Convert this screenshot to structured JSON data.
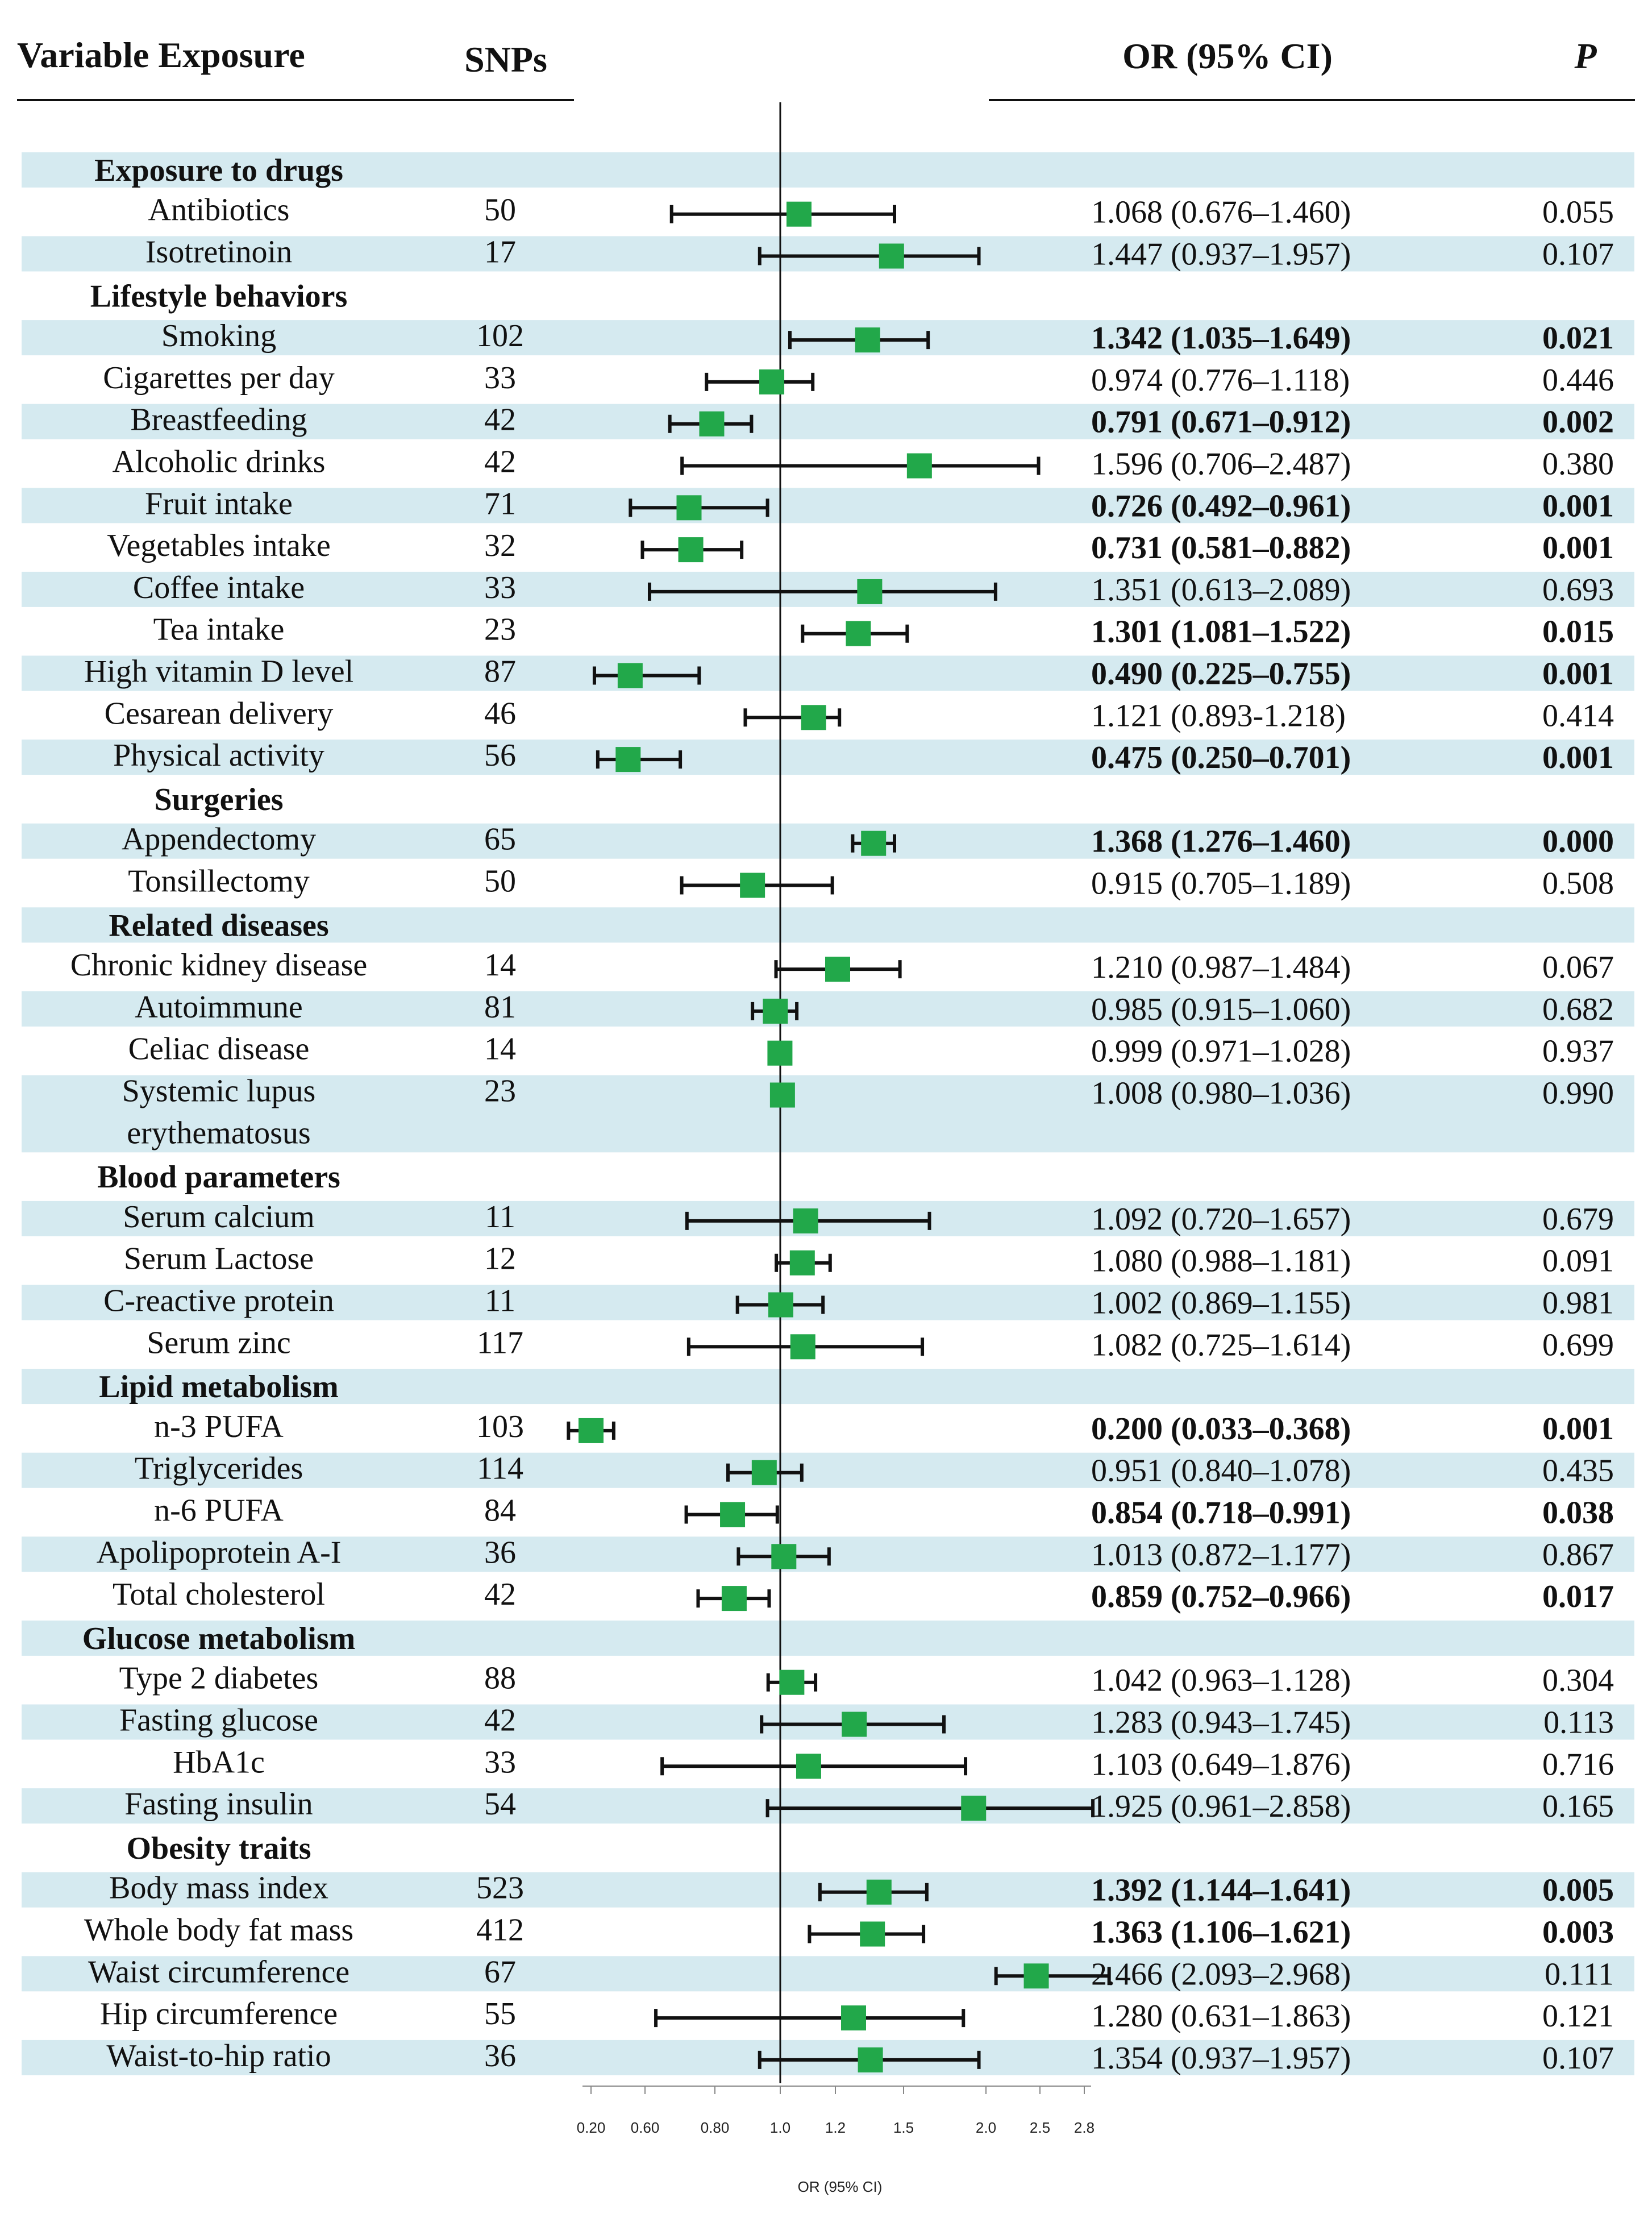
{
  "header": {
    "variable": "Variable Exposure",
    "snps": "SNPs",
    "or": "OR (95% CI)",
    "p": "P"
  },
  "colors": {
    "band": "#d5eaf0",
    "marker": "#22a84a",
    "line": "#111111"
  },
  "chart_data": {
    "type": "forest",
    "title": "",
    "xlabel": "OR (95% CI)",
    "xticks": [
      0.2,
      0.6,
      0.8,
      1.0,
      1.2,
      1.5,
      2.0,
      2.5,
      2.8
    ],
    "xtick_labels": [
      "0.20",
      "0.60",
      "0.80",
      "1.0",
      "1.2",
      "1.5",
      "2.0",
      "2.5",
      "2.8"
    ],
    "reference_line": 1.0,
    "rows": [
      {
        "kind": "group",
        "label": "Exposure to drugs",
        "band": true
      },
      {
        "kind": "item",
        "label": "Antibiotics",
        "snps": "50",
        "or": 1.068,
        "lo": 0.676,
        "hi": 1.46,
        "or_text": "1.068 (0.676–1.460)",
        "p": "0.055",
        "bold": false,
        "band": false
      },
      {
        "kind": "item",
        "label": "Isotretinoin",
        "snps": "17",
        "or": 1.447,
        "lo": 0.937,
        "hi": 1.957,
        "or_text": "1.447 (0.937–1.957)",
        "p": "0.107",
        "bold": false,
        "band": true
      },
      {
        "kind": "group",
        "label": "Lifestyle behaviors",
        "band": false
      },
      {
        "kind": "item",
        "label": "Smoking",
        "snps": "102",
        "or": 1.342,
        "lo": 1.035,
        "hi": 1.649,
        "or_text": "1.342 (1.035–1.649)",
        "p": "0.021",
        "bold": true,
        "band": true
      },
      {
        "kind": "item",
        "label": "Cigarettes per day",
        "snps": "33",
        "or": 0.974,
        "lo": 0.776,
        "hi": 1.118,
        "or_text": "0.974 (0.776–1.118)",
        "p": "0.446",
        "bold": false,
        "band": false
      },
      {
        "kind": "item",
        "label": "Breastfeeding",
        "snps": "42",
        "or": 0.791,
        "lo": 0.671,
        "hi": 0.912,
        "or_text": "0.791 (0.671–0.912)",
        "p": "0.002",
        "bold": true,
        "band": true
      },
      {
        "kind": "item",
        "label": "Alcoholic drinks",
        "snps": "42",
        "or": 1.596,
        "lo": 0.706,
        "hi": 2.487,
        "or_text": "1.596 (0.706–2.487)",
        "p": "0.380",
        "bold": false,
        "band": false
      },
      {
        "kind": "item",
        "label": "Fruit intake",
        "snps": "71",
        "or": 0.726,
        "lo": 0.492,
        "hi": 0.961,
        "or_text": "0.726 (0.492–0.961)",
        "p": "0.001",
        "bold": true,
        "band": true
      },
      {
        "kind": "item",
        "label": "Vegetables intake",
        "snps": "32",
        "or": 0.731,
        "lo": 0.581,
        "hi": 0.882,
        "or_text": "0.731 (0.581–0.882)",
        "p": "0.001",
        "bold": true,
        "band": false
      },
      {
        "kind": "item",
        "label": "Coffee intake",
        "snps": "33",
        "or": 1.351,
        "lo": 0.613,
        "hi": 2.089,
        "or_text": "1.351 (0.613–2.089)",
        "p": "0.693",
        "bold": false,
        "band": true
      },
      {
        "kind": "item",
        "label": "Tea intake",
        "snps": "23",
        "or": 1.301,
        "lo": 1.081,
        "hi": 1.522,
        "or_text": "1.301 (1.081–1.522)",
        "p": "0.015",
        "bold": true,
        "band": false
      },
      {
        "kind": "item",
        "label": "High vitamin D level",
        "snps": "87",
        "or": 0.49,
        "lo": 0.225,
        "hi": 0.755,
        "or_text": "0.490 (0.225–0.755)",
        "p": "0.001",
        "bold": true,
        "band": true
      },
      {
        "kind": "item",
        "label": "Cesarean delivery",
        "snps": "46",
        "or": 1.121,
        "lo": 0.893,
        "hi": 1.218,
        "or_text": "1.121 (0.893-1.218)",
        "p": "0.414",
        "bold": false,
        "band": false
      },
      {
        "kind": "item",
        "label": "Physical activity",
        "snps": "56",
        "or": 0.475,
        "lo": 0.25,
        "hi": 0.701,
        "or_text": "0.475 (0.250–0.701)",
        "p": "0.001",
        "bold": true,
        "band": true
      },
      {
        "kind": "group",
        "label": "Surgeries",
        "band": false
      },
      {
        "kind": "item",
        "label": "Appendectomy",
        "snps": "65",
        "or": 1.368,
        "lo": 1.276,
        "hi": 1.46,
        "or_text": "1.368 (1.276–1.460)",
        "p": "0.000",
        "bold": true,
        "band": true
      },
      {
        "kind": "item",
        "label": "Tonsillectomy",
        "snps": "50",
        "or": 0.915,
        "lo": 0.705,
        "hi": 1.189,
        "or_text": "0.915 (0.705–1.189)",
        "p": "0.508",
        "bold": false,
        "band": false
      },
      {
        "kind": "group",
        "label": "Related diseases",
        "band": true
      },
      {
        "kind": "item",
        "label": "Chronic kidney disease",
        "snps": "14",
        "or": 1.21,
        "lo": 0.987,
        "hi": 1.484,
        "or_text": "1.210 (0.987–1.484)",
        "p": "0.067",
        "bold": false,
        "band": false
      },
      {
        "kind": "item",
        "label": "Autoimmune",
        "snps": "81",
        "or": 0.985,
        "lo": 0.915,
        "hi": 1.06,
        "or_text": "0.985 (0.915–1.060)",
        "p": "0.682",
        "bold": false,
        "band": true
      },
      {
        "kind": "item",
        "label": "Celiac disease",
        "snps": "14",
        "or": 0.999,
        "lo": 0.971,
        "hi": 1.028,
        "or_text": "0.999 (0.971–1.028)",
        "p": "0.937",
        "bold": false,
        "band": false
      },
      {
        "kind": "item",
        "label": "Systemic lupus",
        "label2": "erythematosus",
        "snps": "23",
        "or": 1.008,
        "lo": 0.98,
        "hi": 1.036,
        "or_text": "1.008 (0.980–1.036)",
        "p": "0.990",
        "bold": false,
        "band": true
      },
      {
        "kind": "group",
        "label": "Blood parameters",
        "band": false
      },
      {
        "kind": "item",
        "label": "Serum calcium",
        "snps": "11",
        "or": 1.092,
        "lo": 0.72,
        "hi": 1.657,
        "or_text": "1.092 (0.720–1.657)",
        "p": "0.679",
        "bold": false,
        "band": true
      },
      {
        "kind": "item",
        "label": "Serum Lactose",
        "snps": "12",
        "or": 1.08,
        "lo": 0.988,
        "hi": 1.181,
        "or_text": "1.080 (0.988–1.181)",
        "p": "0.091",
        "bold": false,
        "band": false
      },
      {
        "kind": "item",
        "label": "C-reactive protein",
        "snps": "11",
        "or": 1.002,
        "lo": 0.869,
        "hi": 1.155,
        "or_text": "1.002 (0.869–1.155)",
        "p": "0.981",
        "bold": false,
        "band": true
      },
      {
        "kind": "item",
        "label": "Serum zinc",
        "snps": "117",
        "or": 1.082,
        "lo": 0.725,
        "hi": 1.614,
        "or_text": "1.082 (0.725–1.614)",
        "p": "0.699",
        "bold": false,
        "band": false
      },
      {
        "kind": "group",
        "label": "Lipid metabolism",
        "band": true
      },
      {
        "kind": "item",
        "label": "n-3 PUFA",
        "snps": "103",
        "or": 0.2,
        "lo": 0.033,
        "hi": 0.368,
        "or_text": "0.200 (0.033–0.368)",
        "p": "0.001",
        "bold": true,
        "band": false
      },
      {
        "kind": "item",
        "label": "Triglycerides",
        "snps": "114",
        "or": 0.951,
        "lo": 0.84,
        "hi": 1.078,
        "or_text": "0.951 (0.840–1.078)",
        "p": "0.435",
        "bold": false,
        "band": true
      },
      {
        "kind": "item",
        "label": "n-6 PUFA",
        "snps": "84",
        "or": 0.854,
        "lo": 0.718,
        "hi": 0.991,
        "or_text": "0.854 (0.718–0.991)",
        "p": "0.038",
        "bold": true,
        "band": false
      },
      {
        "kind": "item",
        "label": "Apolipoprotein A-I",
        "snps": "36",
        "or": 1.013,
        "lo": 0.872,
        "hi": 1.177,
        "or_text": "1.013 (0.872–1.177)",
        "p": "0.867",
        "bold": false,
        "band": true
      },
      {
        "kind": "item",
        "label": "Total cholesterol",
        "snps": "42",
        "or": 0.859,
        "lo": 0.752,
        "hi": 0.966,
        "or_text": "0.859 (0.752–0.966)",
        "p": "0.017",
        "bold": true,
        "band": false
      },
      {
        "kind": "group",
        "label": "Glucose metabolism",
        "band": true
      },
      {
        "kind": "item",
        "label": "Type 2 diabetes",
        "snps": "88",
        "or": 1.042,
        "lo": 0.963,
        "hi": 1.128,
        "or_text": "1.042 (0.963–1.128)",
        "p": "0.304",
        "bold": false,
        "band": false
      },
      {
        "kind": "item",
        "label": "Fasting glucose",
        "snps": "42",
        "or": 1.283,
        "lo": 0.943,
        "hi": 1.745,
        "or_text": "1.283 (0.943–1.745)",
        "p": "0.113",
        "bold": false,
        "band": true
      },
      {
        "kind": "item",
        "label": "HbA1c",
        "snps": "33",
        "or": 1.103,
        "lo": 0.649,
        "hi": 1.876,
        "or_text": "1.103 (0.649–1.876)",
        "p": "0.716",
        "bold": false,
        "band": false
      },
      {
        "kind": "item",
        "label": "Fasting insulin",
        "snps": "54",
        "or": 1.925,
        "lo": 0.961,
        "hi": 2.858,
        "or_text": "1.925 (0.961–2.858)",
        "p": "0.165",
        "bold": false,
        "band": true
      },
      {
        "kind": "group",
        "label": "Obesity traits",
        "band": false
      },
      {
        "kind": "item",
        "label": "Body mass index",
        "snps": "523",
        "or": 1.392,
        "lo": 1.144,
        "hi": 1.641,
        "or_text": "1.392 (1.144–1.641)",
        "p": "0.005",
        "bold": true,
        "band": true
      },
      {
        "kind": "item",
        "label": "Whole body fat mass",
        "snps": "412",
        "or": 1.363,
        "lo": 1.106,
        "hi": 1.621,
        "or_text": "1.363 (1.106–1.621)",
        "p": "0.003",
        "bold": true,
        "band": false
      },
      {
        "kind": "item",
        "label": "Waist circumference",
        "snps": "67",
        "or": 2.466,
        "lo": 2.093,
        "hi": 2.968,
        "or_text": "2.466 (2.093–2.968)",
        "p": "0.111",
        "bold": false,
        "band": true
      },
      {
        "kind": "item",
        "label": "Hip circumference",
        "snps": "55",
        "or": 1.28,
        "lo": 0.631,
        "hi": 1.863,
        "or_text": "1.280 (0.631–1.863)",
        "p": "0.121",
        "bold": false,
        "band": false
      },
      {
        "kind": "item",
        "label": "Waist-to-hip ratio",
        "snps": "36",
        "or": 1.354,
        "lo": 0.937,
        "hi": 1.957,
        "or_text": "1.354 (0.937–1.957)",
        "p": "0.107",
        "bold": false,
        "band": true
      }
    ]
  }
}
